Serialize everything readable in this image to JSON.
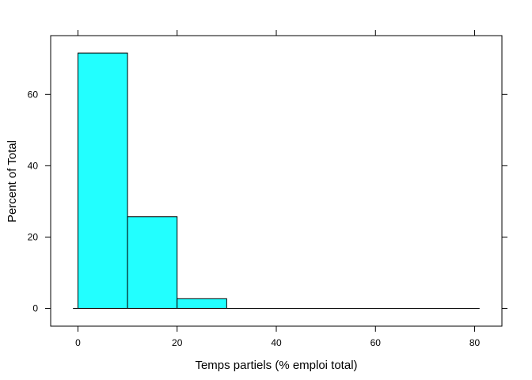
{
  "chart_data": {
    "type": "bar",
    "title": "",
    "xlabel": "Temps partiels (% emploi total)",
    "ylabel": "Percent of Total",
    "bins": [
      {
        "start": 0,
        "end": 10,
        "value": 71.6
      },
      {
        "start": 10,
        "end": 20,
        "value": 25.7
      },
      {
        "start": 20,
        "end": 30,
        "value": 2.7
      },
      {
        "start": 30,
        "end": 40,
        "value": 0
      },
      {
        "start": 40,
        "end": 50,
        "value": 0
      },
      {
        "start": 50,
        "end": 60,
        "value": 0
      },
      {
        "start": 60,
        "end": 70,
        "value": 0
      },
      {
        "start": 70,
        "end": 80,
        "value": 0
      }
    ],
    "xticks": [
      0,
      20,
      40,
      60,
      80
    ],
    "yticks": [
      0,
      20,
      40,
      60
    ],
    "xlim": [
      -5.5,
      85.5
    ],
    "ylim": [
      -5,
      76.5
    ],
    "grid": false,
    "bar_color": "#22ffff",
    "edge_color": "#000000"
  }
}
